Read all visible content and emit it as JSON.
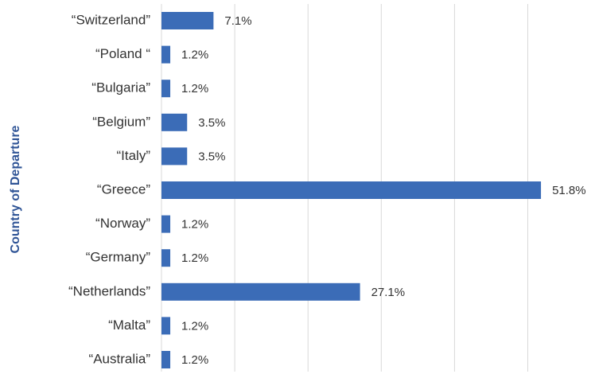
{
  "chart_data": {
    "type": "hbar",
    "y_label": "Country of Departure",
    "categories": [
      "“Switzerland”",
      "“Poland “",
      "“Bulgaria”",
      "“Belgium”",
      "“Italy”",
      "“Greece”",
      "“Norway”",
      "“Germany”",
      "“Netherlands”",
      "“Malta”",
      "“Australia”"
    ],
    "values": [
      7.1,
      1.2,
      1.2,
      3.5,
      3.5,
      51.8,
      1.2,
      1.2,
      27.1,
      1.2,
      1.2
    ],
    "value_labels": [
      "7.1%",
      "1.2%",
      "1.2%",
      "3.5%",
      "3.5%",
      "51.8%",
      "1.2%",
      "1.2%",
      "27.1%",
      "1.2%",
      "1.2%"
    ],
    "color": "#3b6cb7",
    "xlim": [
      0,
      60
    ],
    "xticks": [
      0,
      10,
      20,
      30,
      40,
      50
    ],
    "grid": true
  }
}
